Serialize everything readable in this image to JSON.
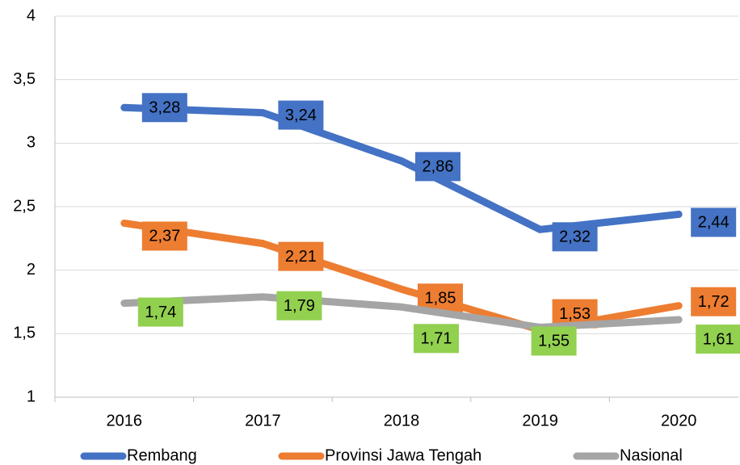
{
  "chart_data": {
    "type": "line",
    "categories": [
      "2016",
      "2017",
      "2018",
      "2019",
      "2020"
    ],
    "series": [
      {
        "name": "Rembang",
        "color": "#4472c4",
        "label_color": "#4472c4",
        "values": [
          3.28,
          3.24,
          2.86,
          2.32,
          2.44
        ],
        "value_labels": [
          "3,28",
          "3,24",
          "2,86",
          "2,32",
          "2,44"
        ]
      },
      {
        "name": "Provinsi Jawa Tengah",
        "color": "#ed7d31",
        "label_color": "#ed7d31",
        "values": [
          2.37,
          2.21,
          1.85,
          1.53,
          1.72
        ],
        "value_labels": [
          "2,37",
          "2,21",
          "1,85",
          "1,53",
          "1,72"
        ]
      },
      {
        "name": "Nasional",
        "color": "#a5a5a5",
        "label_color": "#92d050",
        "values": [
          1.74,
          1.79,
          1.71,
          1.55,
          1.61
        ],
        "value_labels": [
          "1,74",
          "1,79",
          "1,71",
          "1,55",
          "1,61"
        ]
      }
    ],
    "ylim": [
      1,
      4
    ],
    "yticks": [
      1,
      {
        "value": 1.5,
        "label": "1,5"
      },
      2,
      {
        "value": 2.5,
        "label": "2,5"
      },
      3,
      {
        "value": 3.5,
        "label": "3,5"
      },
      4
    ],
    "grid": true,
    "legend": "bottom"
  }
}
